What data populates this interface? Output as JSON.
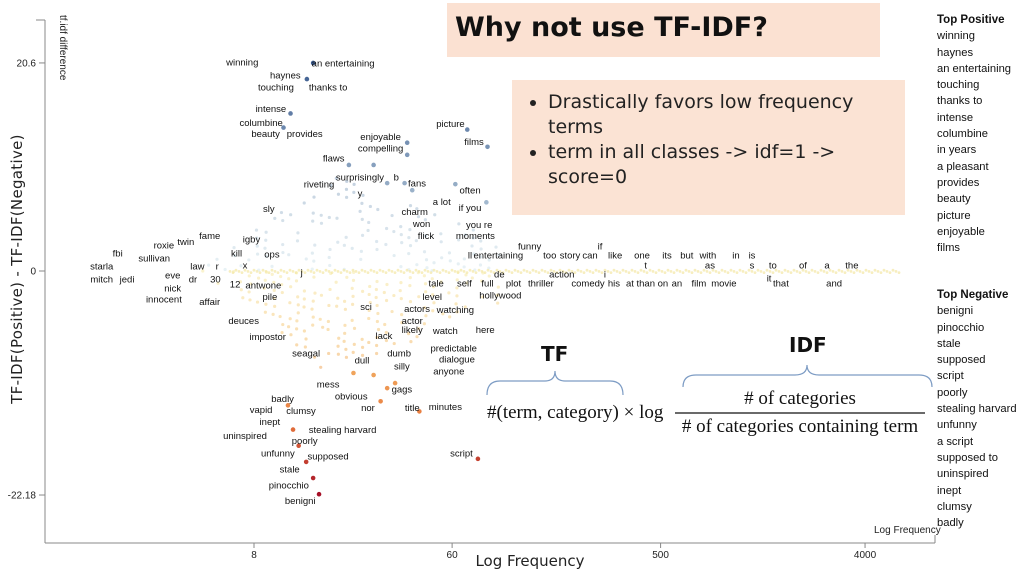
{
  "slide": {
    "title": "Why not use TF-IDF?",
    "bullets": [
      "Drastically favors low frequency terms",
      "term in all classes -> idf=1 -> score=0"
    ],
    "tf_label": "TF",
    "idf_label": "IDF",
    "formula": {
      "tf_part": "#(term, category) × log",
      "numerator": "# of categories",
      "denominator": "# of categories containing term"
    },
    "top_positive": {
      "heading": "Top Positive",
      "items": [
        "winning",
        "haynes",
        "an entertaining",
        "touching",
        "thanks to",
        "intense",
        "columbine",
        "in years",
        "a pleasant",
        "provides",
        "beauty",
        "picture",
        "enjoyable",
        "films"
      ]
    },
    "top_negative": {
      "heading": "Top Negative",
      "items": [
        "benigni",
        "pinocchio",
        "stale",
        "supposed",
        "script",
        "poorly",
        "stealing harvard",
        "unfunny",
        "a script",
        "supposed to",
        "uninspired",
        "inept",
        "clumsy",
        "badly"
      ]
    }
  },
  "chart_data": {
    "type": "scatter",
    "xlabel": "Log Frequency",
    "ylabel": "TF-IDF(Positive) - TF-IDF(Negative)",
    "x_axis_title": "Log Frequency",
    "y_axis_title": "tf.idf difference",
    "x_scale": "log",
    "x_ticks": [
      "8",
      "60",
      "500",
      "4000"
    ],
    "x_tick_values": [
      8,
      60,
      500,
      4000
    ],
    "y_ticks": [
      "20.6",
      "0",
      "-22.18"
    ],
    "y_tick_values": [
      20.6,
      0,
      -22.18
    ],
    "ylim": [
      -26,
      25
    ],
    "grid": false,
    "colors": {
      "positive": "#3b5b8f",
      "neutral": "#f6eaa6",
      "negative": "#a50f27"
    },
    "terms": [
      {
        "t": "winning",
        "x": 7.1,
        "y": 20.7
      },
      {
        "t": "an entertaining",
        "x": 19.8,
        "y": 20.6
      },
      {
        "t": "haynes",
        "x": 11,
        "y": 19.4
      },
      {
        "t": "touching",
        "x": 10,
        "y": 18.2
      },
      {
        "t": "thanks to",
        "x": 17,
        "y": 18.2
      },
      {
        "t": "intense",
        "x": 9.5,
        "y": 16.1
      },
      {
        "t": "columbine",
        "x": 8.6,
        "y": 14.7
      },
      {
        "t": "beauty",
        "x": 9,
        "y": 13.6
      },
      {
        "t": "provides",
        "x": 13.4,
        "y": 13.6
      },
      {
        "t": "picture",
        "x": 59,
        "y": 14.6
      },
      {
        "t": "films",
        "x": 75,
        "y": 12.8
      },
      {
        "t": "enjoyable",
        "x": 29,
        "y": 13.3
      },
      {
        "t": "compelling",
        "x": 29,
        "y": 12.2
      },
      {
        "t": "flaws",
        "x": 18,
        "y": 11.2
      },
      {
        "t": "surprisingly",
        "x": 23.5,
        "y": 9.3
      },
      {
        "t": "b",
        "x": 34,
        "y": 9.3
      },
      {
        "t": "fans",
        "x": 42,
        "y": 8.7
      },
      {
        "t": "riveting",
        "x": 15.5,
        "y": 8.6
      },
      {
        "t": "often",
        "x": 72,
        "y": 8.0
      },
      {
        "t": "y",
        "x": 23.5,
        "y": 7.7
      },
      {
        "t": "a lot",
        "x": 54,
        "y": 6.9
      },
      {
        "t": "if you",
        "x": 72,
        "y": 6.3
      },
      {
        "t": "charm",
        "x": 41,
        "y": 5.9
      },
      {
        "t": "sly",
        "x": 9.3,
        "y": 6.2
      },
      {
        "t": "won",
        "x": 44,
        "y": 4.7
      },
      {
        "t": "you re",
        "x": 79,
        "y": 4.6
      },
      {
        "t": "flick",
        "x": 46,
        "y": 3.5
      },
      {
        "t": "moments",
        "x": 76,
        "y": 3.5
      },
      {
        "t": "fame",
        "x": 5.1,
        "y": 3.5
      },
      {
        "t": "twin",
        "x": 4.0,
        "y": 2.9
      },
      {
        "t": "kill",
        "x": 6.7,
        "y": 1.8
      },
      {
        "t": "igby",
        "x": 7.8,
        "y": 2.3
      },
      {
        "t": "ops",
        "x": 9.6,
        "y": 1.7
      },
      {
        "t": "fbi",
        "x": 2.0,
        "y": 1.8
      },
      {
        "t": "sullivan",
        "x": 2.9,
        "y": 1.3
      },
      {
        "t": "roxie",
        "x": 3.4,
        "y": 1.7
      },
      {
        "t": "starla",
        "x": 1.7,
        "y": 0.5
      },
      {
        "t": "eve",
        "x": 3.5,
        "y": 0.5
      },
      {
        "t": "law",
        "x": 4.5,
        "y": 0.5
      },
      {
        "t": "r",
        "x": 5.5,
        "y": 0.5
      },
      {
        "t": "x",
        "x": 7.3,
        "y": 0.6
      },
      {
        "t": "j",
        "x": 13,
        "y": -0.1
      },
      {
        "t": "mitch",
        "x": 1.7,
        "y": -0.8
      },
      {
        "t": "jedi",
        "x": 2.2,
        "y": -0.8
      },
      {
        "t": "nick",
        "x": 3.5,
        "y": -0.8
      },
      {
        "t": "dr",
        "x": 4.3,
        "y": -0.8
      },
      {
        "t": "30",
        "x": 5.4,
        "y": -0.8
      },
      {
        "t": "innocent",
        "x": 3.2,
        "y": -1.9
      },
      {
        "t": "12",
        "x": 6.6,
        "y": -1.3
      },
      {
        "t": "antwone",
        "x": 8.8,
        "y": -1.4
      },
      {
        "t": "pile",
        "x": 9.4,
        "y": -2.5
      },
      {
        "t": "affair",
        "x": 5.1,
        "y": -3.0
      },
      {
        "t": "deuces",
        "x": 7.2,
        "y": -4.9
      },
      {
        "t": "impostor",
        "x": 9.2,
        "y": -6.5
      },
      {
        "t": "ll",
        "x": 72,
        "y": 1.6
      },
      {
        "t": "entertaining",
        "x": 96,
        "y": 1.6
      },
      {
        "t": "funny",
        "x": 132,
        "y": 1.6
      },
      {
        "t": "too",
        "x": 162,
        "y": 1.6
      },
      {
        "t": "story",
        "x": 199,
        "y": 1.6
      },
      {
        "t": "can",
        "x": 244,
        "y": 1.6
      },
      {
        "t": "if",
        "x": 270,
        "y": 1.6
      },
      {
        "t": "like",
        "x": 315,
        "y": 1.6
      },
      {
        "t": "one",
        "x": 414,
        "y": 1.6
      },
      {
        "t": "its",
        "x": 534,
        "y": 1.6
      },
      {
        "t": "but",
        "x": 653,
        "y": 1.6
      },
      {
        "t": "with",
        "x": 809,
        "y": 1.6
      },
      {
        "t": "in",
        "x": 1076,
        "y": 1.6
      },
      {
        "t": "is",
        "x": 1267,
        "y": 1.6
      },
      {
        "t": "t",
        "x": 430,
        "y": 0.6
      },
      {
        "t": "as",
        "x": 826,
        "y": 0.6
      },
      {
        "t": "s",
        "x": 1267,
        "y": 0.6
      },
      {
        "t": "to",
        "x": 1567,
        "y": 0.6
      },
      {
        "t": "of",
        "x": 2128,
        "y": 0.6
      },
      {
        "t": "a",
        "x": 2716,
        "y": 0.6
      },
      {
        "t": "the",
        "x": 3500,
        "y": 0.6
      },
      {
        "t": "tale",
        "x": 51,
        "y": -1.2
      },
      {
        "t": "self",
        "x": 68,
        "y": -1.2
      },
      {
        "t": "full",
        "x": 86,
        "y": -1.2
      },
      {
        "t": "de",
        "x": 97,
        "y": -1.2
      },
      {
        "t": "plot",
        "x": 112,
        "y": -1.2
      },
      {
        "t": "thriller",
        "x": 148,
        "y": -1.2
      },
      {
        "t": "action",
        "x": 183,
        "y": -1.2
      },
      {
        "t": "comedy",
        "x": 239,
        "y": -1.2
      },
      {
        "t": "i",
        "x": 284,
        "y": -1.2
      },
      {
        "t": "his",
        "x": 311,
        "y": -1.2
      },
      {
        "t": "at",
        "x": 366,
        "y": -1.2
      },
      {
        "t": "than",
        "x": 430,
        "y": -1.2
      },
      {
        "t": "on",
        "x": 512,
        "y": -1.2
      },
      {
        "t": "an",
        "x": 590,
        "y": -1.2
      },
      {
        "t": "film",
        "x": 738,
        "y": -1.2
      },
      {
        "t": "movie",
        "x": 952,
        "y": -1.2
      },
      {
        "t": "that",
        "x": 1700,
        "y": -1.2
      },
      {
        "t": "and",
        "x": 2920,
        "y": -1.2
      },
      {
        "t": "it",
        "x": 1507,
        "y": -0.7
      },
      {
        "t": "level",
        "x": 49,
        "y": -2.5
      },
      {
        "t": "watching",
        "x": 62,
        "y": -2.9
      },
      {
        "t": "hollywood",
        "x": 98,
        "y": -2.4
      },
      {
        "t": "sci",
        "x": 25,
        "y": -3.5
      },
      {
        "t": "actors",
        "x": 42,
        "y": -3.7
      },
      {
        "t": "actor",
        "x": 40,
        "y": -4.9
      },
      {
        "t": "likely",
        "x": 40,
        "y": -5.8
      },
      {
        "t": "watch",
        "x": 56,
        "y": -5.9
      },
      {
        "t": "here",
        "x": 84,
        "y": -5.8
      },
      {
        "t": "lack",
        "x": 30,
        "y": -6.4
      },
      {
        "t": "seagal",
        "x": 13.6,
        "y": -8.1
      },
      {
        "t": "dumb",
        "x": 35,
        "y": -8.1
      },
      {
        "t": "predictable",
        "x": 61,
        "y": -7.6
      },
      {
        "t": "dull",
        "x": 24,
        "y": -8.8
      },
      {
        "t": "dialogue",
        "x": 63,
        "y": -8.7
      },
      {
        "t": "silly",
        "x": 36,
        "y": -9.4
      },
      {
        "t": "anyone",
        "x": 58,
        "y": -9.9
      },
      {
        "t": "mess",
        "x": 17,
        "y": -11.2
      },
      {
        "t": "obvious",
        "x": 21.5,
        "y": -12.4
      },
      {
        "t": "gags",
        "x": 36,
        "y": -11.7
      },
      {
        "t": "nor",
        "x": 25.5,
        "y": -13.5
      },
      {
        "t": "title",
        "x": 40,
        "y": -13.5
      },
      {
        "t": "minutes",
        "x": 56,
        "y": -13.4
      },
      {
        "t": "badly",
        "x": 10.7,
        "y": -12.6
      },
      {
        "t": "vapid",
        "x": 8.6,
        "y": -13.7
      },
      {
        "t": "clumsy",
        "x": 12.9,
        "y": -13.8
      },
      {
        "t": "inept",
        "x": 9.4,
        "y": -14.9
      },
      {
        "t": "stealing harvard",
        "x": 19.7,
        "y": -15.7
      },
      {
        "t": "uninspired",
        "x": 7.3,
        "y": -16.3
      },
      {
        "t": "poorly",
        "x": 13.4,
        "y": -16.8
      },
      {
        "t": "unfunny",
        "x": 10.2,
        "y": -18
      },
      {
        "t": "supposed",
        "x": 17,
        "y": -18.3
      },
      {
        "t": "stale",
        "x": 11.5,
        "y": -19.6
      },
      {
        "t": "script",
        "x": 66,
        "y": -18
      },
      {
        "t": "pinocchio",
        "x": 11.4,
        "y": -21.2
      },
      {
        "t": "benigni",
        "x": 12.8,
        "y": -22.7
      }
    ],
    "points": [
      {
        "x": 14.6,
        "y": 20.6
      },
      {
        "x": 13.7,
        "y": 19.0
      },
      {
        "x": 11.6,
        "y": 15.6
      },
      {
        "x": 10.8,
        "y": 14.2
      },
      {
        "x": 38,
        "y": 12.7
      },
      {
        "x": 38,
        "y": 11.5
      },
      {
        "x": 70,
        "y": 14.0
      },
      {
        "x": 86,
        "y": 12.3
      },
      {
        "x": 21,
        "y": 10.5
      },
      {
        "x": 27,
        "y": 10.5
      },
      {
        "x": 31,
        "y": 8.7
      },
      {
        "x": 37,
        "y": 8.7
      },
      {
        "x": 40,
        "y": 8.0
      },
      {
        "x": 62,
        "y": 8.6
      },
      {
        "x": 85,
        "y": 6.8
      },
      {
        "x": 11.3,
        "y": -13.3
      },
      {
        "x": 11.9,
        "y": -15.7
      },
      {
        "x": 12.6,
        "y": -17.3
      },
      {
        "x": 13.6,
        "y": -18.9
      },
      {
        "x": 14.6,
        "y": -20.5
      },
      {
        "x": 15.5,
        "y": -22.1
      },
      {
        "x": 78,
        "y": -18.6
      },
      {
        "x": 43,
        "y": -13.9
      },
      {
        "x": 29,
        "y": -12.9
      },
      {
        "x": 27,
        "y": -10.3
      },
      {
        "x": 22,
        "y": -10.1
      },
      {
        "x": 31,
        "y": -11.6
      },
      {
        "x": 33.6,
        "y": -11.1
      }
    ]
  }
}
